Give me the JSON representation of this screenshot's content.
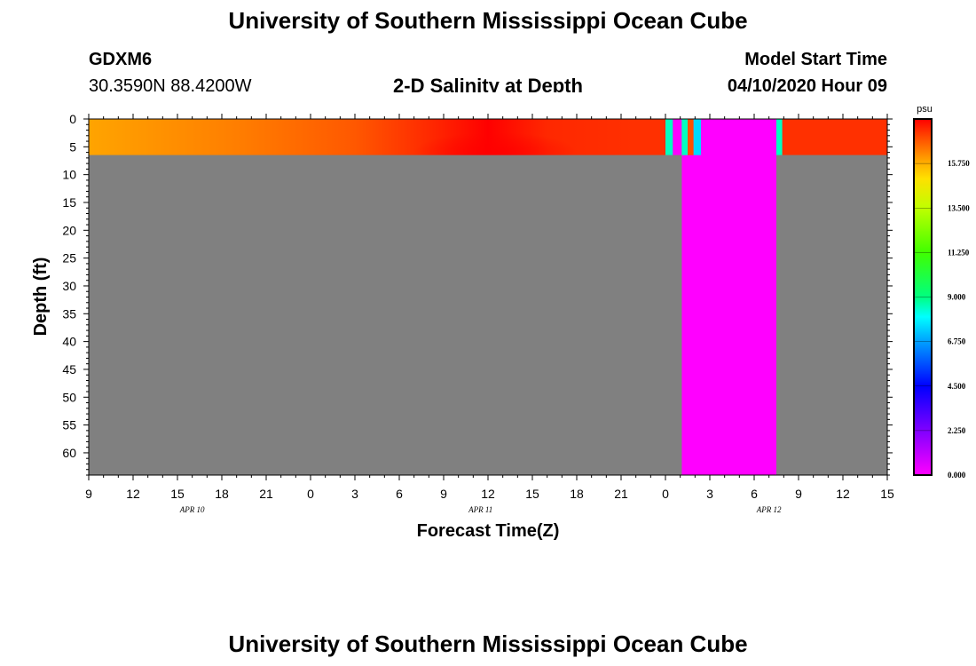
{
  "page": {
    "title_top": "University of Southern Mississippi Ocean Cube",
    "title_bottom": "University of Southern Mississippi Ocean Cube",
    "station": "GDXM6",
    "coords": "30.3590N 88.4200W",
    "plot_title": "2-D Salinity at Depth",
    "start_label": "Model Start Time",
    "start_value": "04/10/2020 Hour 09"
  },
  "chart_data": {
    "type": "heatmap",
    "title": "2-D Salinity at Depth",
    "xlabel": "Forecast Time(Z)",
    "ylabel": "Depth (ft)",
    "x_ticks": [
      "9",
      "12",
      "15",
      "18",
      "21",
      "0",
      "3",
      "6",
      "9",
      "12",
      "15",
      "18",
      "21",
      "0",
      "3",
      "6",
      "9",
      "12",
      "15"
    ],
    "x_range_hours": [
      0,
      54
    ],
    "date_labels": [
      {
        "label": "APR 10",
        "hour": 7
      },
      {
        "label": "APR 11",
        "hour": 26.5
      },
      {
        "label": "APR 12",
        "hour": 46
      }
    ],
    "y_ticks": [
      "0",
      "5",
      "10",
      "15",
      "20",
      "25",
      "30",
      "35",
      "40",
      "45",
      "50",
      "55",
      "60"
    ],
    "y_range_ft": [
      0,
      64
    ],
    "water_depth_ft": 6.5,
    "missing_color": "#808080",
    "colorbar": {
      "unit": "psu",
      "range": [
        0,
        18
      ],
      "labels": [
        "0.000",
        "2.250",
        "4.500",
        "6.750",
        "9.000",
        "11.250",
        "13.500",
        "15.750"
      ],
      "stops": [
        {
          "v": 0,
          "c": "#ff00ff"
        },
        {
          "v": 2.25,
          "c": "#8000ff"
        },
        {
          "v": 4.5,
          "c": "#0000ff"
        },
        {
          "v": 6.75,
          "c": "#00a0ff"
        },
        {
          "v": 8.0,
          "c": "#00ffff"
        },
        {
          "v": 9.0,
          "c": "#00ff80"
        },
        {
          "v": 11.25,
          "c": "#40ff00"
        },
        {
          "v": 13.5,
          "c": "#c0ff00"
        },
        {
          "v": 15.0,
          "c": "#ffe000"
        },
        {
          "v": 15.75,
          "c": "#ffb000"
        },
        {
          "v": 17.0,
          "c": "#ff5000"
        },
        {
          "v": 18,
          "c": "#ff0000"
        }
      ]
    },
    "surface_salinity": [
      {
        "hour": 0,
        "psu": 15.9
      },
      {
        "hour": 10,
        "psu": 16.4
      },
      {
        "hour": 18,
        "psu": 16.9
      },
      {
        "hour": 24,
        "psu": 17.6
      },
      {
        "hour": 27,
        "psu": 18.0
      },
      {
        "hour": 31,
        "psu": 17.5
      },
      {
        "hour": 37,
        "psu": 17.4
      },
      {
        "hour": 39,
        "psu": 17.4
      }
    ],
    "segments": [
      {
        "from": 39.0,
        "to": 39.5,
        "psu": 8.5
      },
      {
        "from": 39.5,
        "to": 40.1,
        "psu": 0.0
      },
      {
        "from": 40.1,
        "to": 40.5,
        "psu": 8.5
      },
      {
        "from": 40.5,
        "to": 40.9,
        "psu": 17.0
      },
      {
        "from": 40.9,
        "to": 41.4,
        "psu": 7.5
      }
    ],
    "fresh_column": {
      "from": 40.1,
      "to": 46.5,
      "psu": 0.0
    },
    "late_segments": [
      {
        "from": 46.5,
        "to": 46.9,
        "psu": 8.5
      },
      {
        "from": 46.9,
        "to": 54.0,
        "psu": 17.4
      }
    ]
  }
}
